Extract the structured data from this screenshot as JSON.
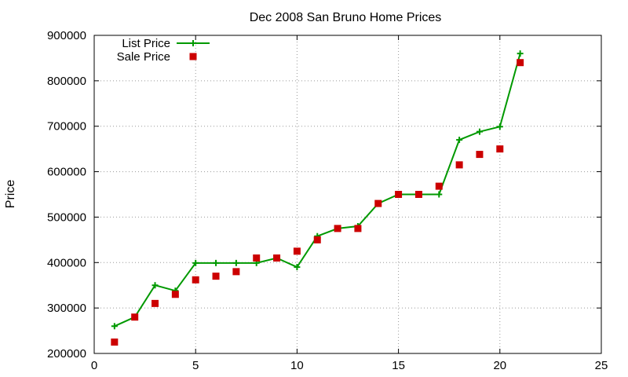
{
  "chart_data": {
    "type": "line",
    "title": "Dec 2008 San Bruno Home Prices",
    "xlabel": "",
    "ylabel": "Price",
    "xlim": [
      0,
      25
    ],
    "ylim": [
      200000,
      900000
    ],
    "xticks": [
      0,
      5,
      10,
      15,
      20,
      25
    ],
    "yticks": [
      200000,
      300000,
      400000,
      500000,
      600000,
      700000,
      800000,
      900000
    ],
    "grid": true,
    "legend_position": "top-left",
    "series": [
      {
        "name": "List Price",
        "style": "line-plus",
        "color": "#009900",
        "x": [
          1,
          2,
          3,
          4,
          5,
          6,
          7,
          8,
          9,
          10,
          11,
          12,
          13,
          14,
          15,
          16,
          17,
          18,
          19,
          20,
          21
        ],
        "y": [
          260000,
          280000,
          350000,
          338000,
          399000,
          399000,
          399000,
          399000,
          410000,
          390000,
          458000,
          475000,
          480000,
          530000,
          550000,
          550000,
          550000,
          670000,
          688000,
          699000,
          860000
        ]
      },
      {
        "name": "Sale Price",
        "style": "square",
        "color": "#cc0000",
        "x": [
          1,
          2,
          3,
          4,
          5,
          6,
          7,
          8,
          9,
          10,
          11,
          12,
          13,
          14,
          15,
          16,
          17,
          18,
          19,
          20,
          21
        ],
        "y": [
          225000,
          280000,
          310000,
          330000,
          362000,
          370000,
          380000,
          410000,
          410000,
          425000,
          450000,
          475000,
          475000,
          530000,
          550000,
          550000,
          568000,
          615000,
          638000,
          650000,
          840000
        ]
      }
    ]
  }
}
